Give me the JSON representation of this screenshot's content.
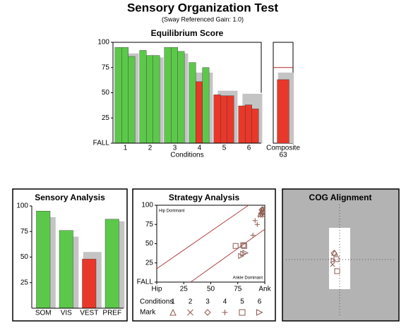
{
  "header": {
    "title": "Sensory Organization Test",
    "subtitle": "(Sway Referenced Gain: 1.0)"
  },
  "chart_data": [
    {
      "type": "bar",
      "title": "Equilibrium Score",
      "x_label": "Conditions",
      "categories": [
        "1",
        "2",
        "3",
        "4",
        "5",
        "6"
      ],
      "ylim": [
        0,
        100
      ],
      "yticks": [
        {
          "value": 0,
          "label": "FALL"
        },
        25,
        50,
        75,
        100
      ],
      "series": [
        {
          "values": [
            95,
            92,
            95,
            80,
            48,
            37
          ],
          "colors": [
            "#5cc84a",
            "#5cc84a",
            "#5cc84a",
            "#5cc84a",
            "#e8382a",
            "#e8382a"
          ]
        },
        {
          "values": [
            95,
            87,
            95,
            61,
            47,
            38
          ],
          "colors": [
            "#5cc84a",
            "#5cc84a",
            "#5cc84a",
            "#e8382a",
            "#e8382a",
            "#e8382a"
          ]
        },
        {
          "values": [
            86,
            87,
            91,
            75,
            47,
            34
          ],
          "colors": [
            "#5cc84a",
            "#5cc84a",
            "#5cc84a",
            "#5cc84a",
            "#e8382a",
            "#e8382a"
          ]
        }
      ],
      "normative": {
        "color": "#c4c4c4",
        "values": [
          89,
          85,
          89,
          70,
          52,
          49
        ]
      }
    },
    {
      "type": "bar",
      "categories": [
        "Composite"
      ],
      "values": [
        63
      ],
      "colors": [
        "#e8382a"
      ],
      "ylim": [
        0,
        100
      ],
      "normative": {
        "color": "#c4c4c4",
        "values": [
          70
        ]
      },
      "threshold": {
        "color": "#b0282a",
        "value": 75
      }
    },
    {
      "type": "bar",
      "title": "Sensory Analysis",
      "categories": [
        "SOM",
        "VIS",
        "VEST",
        "PREF"
      ],
      "values": [
        95,
        76,
        48,
        87
      ],
      "colors": [
        "#5cc84a",
        "#5cc84a",
        "#e8382a",
        "#5cc84a"
      ],
      "ylim": [
        0,
        100
      ],
      "yticks": [
        25,
        50,
        75,
        100
      ],
      "normative": {
        "color": "#c4c4c4",
        "values": [
          89,
          70,
          55,
          85
        ]
      }
    },
    {
      "type": "scatter",
      "title": "Strategy Analysis",
      "xlim": [
        0,
        100
      ],
      "xticks": [
        {
          "value": 0,
          "label": "Hip"
        },
        25,
        50,
        75,
        {
          "value": 100,
          "label": "Ank"
        }
      ],
      "ylim": [
        0,
        100
      ],
      "yticks": [
        {
          "value": 0,
          "label": "FALL"
        },
        25,
        50,
        75,
        100
      ],
      "annotations": [
        "Hip Dominant",
        "Ankle Dominant"
      ],
      "legend_title": "Conditions",
      "marker_label": "Mark",
      "series": [
        {
          "name": "1",
          "marker": "triangle",
          "color": "#8c5a50",
          "x": [
            97,
            98,
            96
          ],
          "y": [
            92,
            95,
            89
          ]
        },
        {
          "name": "2",
          "marker": "cross",
          "color": "#8c5a50",
          "x": [
            97,
            98,
            96
          ],
          "y": [
            91,
            87,
            87
          ]
        },
        {
          "name": "3",
          "marker": "diamond",
          "color": "#8c5a50",
          "x": [
            98,
            97,
            98
          ],
          "y": [
            95,
            94,
            91
          ]
        },
        {
          "name": "4",
          "marker": "plus",
          "color": "#8c5a50",
          "x": [
            91,
            89,
            93
          ],
          "y": [
            80,
            61,
            75
          ]
        },
        {
          "name": "5",
          "marker": "square",
          "color": "#8c5a50",
          "x": [
            73,
            81,
            80
          ],
          "y": [
            47,
            47,
            48
          ]
        },
        {
          "name": "6",
          "marker": "triangle-right",
          "color": "#8c5a50",
          "x": [
            80,
            82,
            78
          ],
          "y": [
            37,
            38,
            34
          ]
        }
      ]
    },
    {
      "type": "cog",
      "title": "COG Alignment"
    }
  ]
}
